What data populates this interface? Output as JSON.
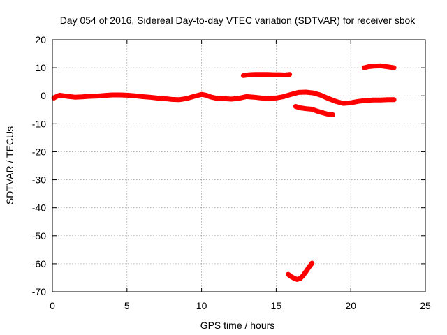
{
  "chart_data": {
    "type": "scatter",
    "title": "Day 054 of 2016, Sidereal Day-to-day VTEC variation (SDTVAR) for receiver sbok",
    "xlabel": "GPS time / hours",
    "ylabel": "SDTVAR / TECUs",
    "xlim": [
      0,
      25
    ],
    "ylim": [
      -70,
      20
    ],
    "xticks": [
      0,
      5,
      10,
      15,
      20,
      25
    ],
    "yticks": [
      20,
      10,
      0,
      -10,
      -20,
      -30,
      -40,
      -50,
      -60,
      -70
    ],
    "grid": true,
    "marker_color": "#ff0000",
    "series": [
      {
        "name": "main trace",
        "points": [
          [
            0.1,
            -0.8
          ],
          [
            0.3,
            -0.2
          ],
          [
            0.5,
            0.2
          ],
          [
            1.0,
            -0.2
          ],
          [
            1.5,
            -0.5
          ],
          [
            2.0,
            -0.4
          ],
          [
            2.5,
            -0.2
          ],
          [
            3.0,
            -0.1
          ],
          [
            3.5,
            0.1
          ],
          [
            4.0,
            0.3
          ],
          [
            4.5,
            0.3
          ],
          [
            5.0,
            0.2
          ],
          [
            5.5,
            0.0
          ],
          [
            6.0,
            -0.3
          ],
          [
            6.5,
            -0.5
          ],
          [
            7.0,
            -0.8
          ],
          [
            7.5,
            -1.0
          ],
          [
            8.0,
            -1.3
          ],
          [
            8.5,
            -1.4
          ],
          [
            9.0,
            -1.0
          ],
          [
            9.5,
            -0.2
          ],
          [
            10.0,
            0.5
          ],
          [
            10.3,
            0.2
          ],
          [
            10.6,
            -0.4
          ],
          [
            11.0,
            -0.9
          ],
          [
            11.5,
            -1.0
          ],
          [
            12.0,
            -1.2
          ],
          [
            12.5,
            -0.9
          ],
          [
            13.0,
            -0.3
          ],
          [
            13.5,
            -0.5
          ],
          [
            14.0,
            -0.8
          ],
          [
            14.5,
            -0.9
          ],
          [
            15.0,
            -0.8
          ],
          [
            15.5,
            -0.3
          ],
          [
            16.0,
            0.5
          ],
          [
            16.5,
            1.2
          ],
          [
            17.0,
            1.3
          ],
          [
            17.5,
            1.0
          ],
          [
            18.0,
            0.2
          ],
          [
            18.5,
            -1.0
          ],
          [
            19.0,
            -2.0
          ],
          [
            19.5,
            -2.7
          ],
          [
            20.0,
            -2.5
          ],
          [
            20.5,
            -2.0
          ],
          [
            21.0,
            -1.7
          ],
          [
            21.5,
            -1.5
          ],
          [
            22.0,
            -1.5
          ],
          [
            22.5,
            -1.4
          ],
          [
            22.9,
            -1.4
          ]
        ]
      },
      {
        "name": "upper segment 13-16h",
        "points": [
          [
            12.8,
            7.2
          ],
          [
            13.2,
            7.5
          ],
          [
            13.6,
            7.6
          ],
          [
            14.0,
            7.6
          ],
          [
            14.4,
            7.6
          ],
          [
            14.8,
            7.5
          ],
          [
            15.2,
            7.5
          ],
          [
            15.6,
            7.4
          ],
          [
            15.9,
            7.6
          ]
        ]
      },
      {
        "name": "upper segment 21-23h",
        "points": [
          [
            20.9,
            10.0
          ],
          [
            21.2,
            10.4
          ],
          [
            21.6,
            10.6
          ],
          [
            22.0,
            10.7
          ],
          [
            22.4,
            10.4
          ],
          [
            22.9,
            10.0
          ]
        ]
      },
      {
        "name": "lower segment 16-19h",
        "points": [
          [
            16.3,
            -3.8
          ],
          [
            16.6,
            -4.3
          ],
          [
            17.0,
            -4.6
          ],
          [
            17.4,
            -4.8
          ],
          [
            17.7,
            -5.4
          ],
          [
            18.0,
            -5.9
          ],
          [
            18.4,
            -6.5
          ],
          [
            18.8,
            -6.8
          ]
        ]
      },
      {
        "name": "deep dip 16-17h",
        "points": [
          [
            15.8,
            -63.8
          ],
          [
            16.0,
            -64.6
          ],
          [
            16.2,
            -65.2
          ],
          [
            16.4,
            -65.6
          ],
          [
            16.6,
            -65.3
          ],
          [
            16.8,
            -64.3
          ],
          [
            17.0,
            -62.8
          ],
          [
            17.2,
            -61.2
          ],
          [
            17.4,
            -59.8
          ]
        ]
      }
    ]
  }
}
